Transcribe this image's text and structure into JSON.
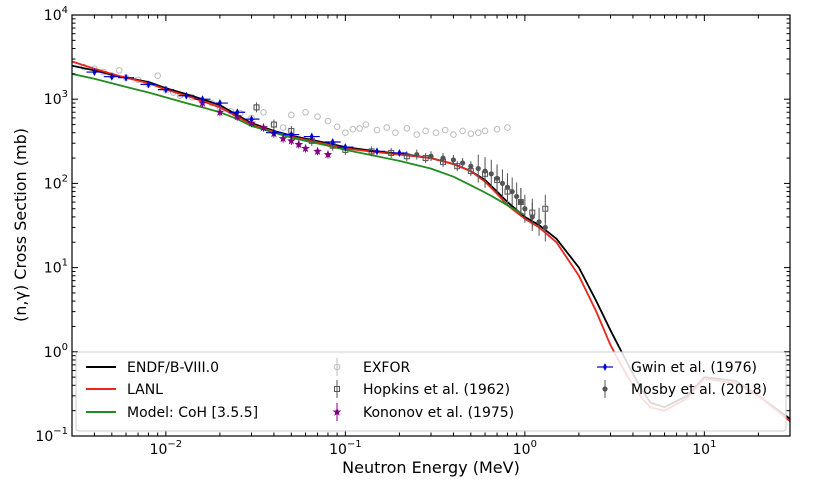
{
  "chart_data": {
    "type": "line",
    "title": "",
    "xlabel": "Neutron Energy (MeV)",
    "ylabel": "(n,γ) Cross Section (mb)",
    "xscale": "log",
    "yscale": "log",
    "xlim": [
      0.003,
      30
    ],
    "ylim": [
      0.1,
      10000
    ],
    "x_ticks": [
      {
        "value": 0.01,
        "base": "10",
        "exp": "−2"
      },
      {
        "value": 0.1,
        "base": "10",
        "exp": "−1"
      },
      {
        "value": 1,
        "base": "10",
        "exp": "0"
      },
      {
        "value": 10,
        "base": "10",
        "exp": "1"
      }
    ],
    "y_ticks": [
      {
        "value": 0.1,
        "base": "10",
        "exp": "−1"
      },
      {
        "value": 1,
        "base": "10",
        "exp": "0"
      },
      {
        "value": 10,
        "base": "10",
        "exp": "1"
      },
      {
        "value": 100,
        "base": "10",
        "exp": "2"
      },
      {
        "value": 1000,
        "base": "10",
        "exp": "3"
      },
      {
        "value": 10000,
        "base": "10",
        "exp": "4"
      }
    ],
    "legend_position": "bottom",
    "series": [
      {
        "name": "ENDF/B-VIII.0",
        "kind": "line",
        "color": "#000000",
        "x": [
          0.003,
          0.004,
          0.005,
          0.006,
          0.008,
          0.01,
          0.013,
          0.016,
          0.02,
          0.025,
          0.03,
          0.04,
          0.05,
          0.06,
          0.08,
          0.1,
          0.15,
          0.2,
          0.3,
          0.4,
          0.5,
          0.6,
          0.7,
          0.8,
          1.0,
          1.2,
          1.5,
          2.0,
          2.5,
          3.0,
          3.5,
          4.0,
          4.5,
          5.0,
          6.0,
          8.0,
          10,
          15,
          20,
          30
        ],
        "y": [
          2500,
          2200,
          1950,
          1800,
          1600,
          1350,
          1150,
          1000,
          850,
          650,
          520,
          420,
          370,
          340,
          300,
          270,
          240,
          225,
          200,
          170,
          140,
          110,
          80,
          60,
          40,
          32,
          22,
          10,
          4.0,
          1.8,
          0.95,
          0.55,
          0.35,
          0.25,
          0.22,
          0.3,
          0.5,
          0.45,
          0.3,
          0.16
        ]
      },
      {
        "name": "LANL",
        "kind": "line",
        "color": "#e8261c",
        "x": [
          0.003,
          0.004,
          0.005,
          0.006,
          0.008,
          0.01,
          0.013,
          0.016,
          0.02,
          0.025,
          0.03,
          0.04,
          0.05,
          0.06,
          0.08,
          0.1,
          0.15,
          0.2,
          0.3,
          0.4,
          0.5,
          0.6,
          0.7,
          0.8,
          1.0,
          1.2,
          1.5,
          2.0,
          2.5,
          3.0,
          3.5,
          4.0,
          4.5,
          5.0,
          6.0,
          8.0,
          10,
          15,
          20,
          30
        ],
        "y": [
          2800,
          2300,
          2000,
          1800,
          1550,
          1300,
          1100,
          950,
          800,
          620,
          500,
          410,
          360,
          330,
          290,
          260,
          235,
          220,
          200,
          170,
          140,
          105,
          75,
          55,
          38,
          30,
          20,
          8.0,
          3.0,
          1.2,
          0.65,
          0.4,
          0.28,
          0.22,
          0.2,
          0.28,
          0.48,
          0.42,
          0.3,
          0.15
        ]
      },
      {
        "name": "Model: CoH [3.5.5]",
        "kind": "line",
        "color": "#228b22",
        "x": [
          0.003,
          0.004,
          0.005,
          0.006,
          0.008,
          0.01,
          0.013,
          0.016,
          0.02,
          0.025,
          0.03,
          0.04,
          0.05,
          0.06,
          0.08,
          0.1,
          0.15,
          0.2,
          0.3,
          0.4,
          0.5,
          0.6,
          0.7,
          0.8,
          1.0
        ],
        "y": [
          2000,
          1750,
          1550,
          1400,
          1200,
          1050,
          900,
          800,
          700,
          580,
          480,
          400,
          350,
          320,
          280,
          250,
          210,
          185,
          150,
          120,
          95,
          78,
          65,
          55,
          42
        ]
      },
      {
        "name": "EXFOR",
        "kind": "marker",
        "marker": "open-circle",
        "color": "#bbbbbb",
        "x": [
          0.0035,
          0.004,
          0.0045,
          0.005,
          0.0055,
          0.006,
          0.007,
          0.008,
          0.009,
          0.01,
          0.011,
          0.012,
          0.014,
          0.016,
          0.018,
          0.02,
          0.023,
          0.026,
          0.03,
          0.032,
          0.035,
          0.04,
          0.045,
          0.05,
          0.06,
          0.07,
          0.08,
          0.09,
          0.1,
          0.11,
          0.12,
          0.13,
          0.15,
          0.17,
          0.19,
          0.22,
          0.25,
          0.28,
          0.32,
          0.36,
          0.4,
          0.45,
          0.5,
          0.55,
          0.6,
          0.7,
          0.8
        ],
        "y": [
          2400,
          2300,
          2100,
          1900,
          2200,
          1800,
          1700,
          1500,
          1900,
          1300,
          1200,
          1100,
          1050,
          950,
          900,
          800,
          720,
          680,
          600,
          800,
          700,
          500,
          460,
          650,
          700,
          620,
          550,
          470,
          400,
          440,
          450,
          500,
          430,
          460,
          400,
          450,
          380,
          420,
          400,
          430,
          380,
          420,
          390,
          400,
          420,
          440,
          460
        ]
      },
      {
        "name": "Hopkins et al. (1962)",
        "kind": "marker",
        "marker": "open-square",
        "color": "#555555",
        "x": [
          0.032,
          0.04,
          0.05,
          0.065,
          0.085,
          0.1,
          0.14,
          0.18,
          0.22,
          0.28,
          0.35,
          0.42,
          0.5,
          0.6,
          0.7,
          0.8,
          0.95,
          1.1,
          1.3
        ],
        "y": [
          800,
          500,
          420,
          320,
          280,
          250,
          240,
          230,
          210,
          200,
          180,
          160,
          140,
          130,
          110,
          80,
          60,
          45,
          50
        ]
      },
      {
        "name": "Kononov et al. (1975)",
        "kind": "marker",
        "marker": "star",
        "color": "#800080",
        "x": [
          0.016,
          0.02,
          0.025,
          0.03,
          0.035,
          0.04,
          0.045,
          0.05,
          0.055,
          0.06,
          0.07,
          0.08
        ],
        "y": [
          900,
          700,
          620,
          520,
          460,
          390,
          340,
          320,
          290,
          260,
          240,
          220
        ]
      },
      {
        "name": "Gwin et al. (1976)",
        "kind": "marker",
        "marker": "cross",
        "color": "#0000cc",
        "x": [
          0.004,
          0.005,
          0.006,
          0.008,
          0.01,
          0.013,
          0.016,
          0.02,
          0.025,
          0.03,
          0.04,
          0.05,
          0.065,
          0.085,
          0.1,
          0.15,
          0.2
        ],
        "y": [
          2100,
          1850,
          1800,
          1500,
          1300,
          1100,
          1000,
          900,
          700,
          580,
          400,
          380,
          360,
          310,
          270,
          240,
          230
        ]
      },
      {
        "name": "Mosby et al. (2018)",
        "kind": "marker",
        "marker": "filled-circle",
        "color": "#555555",
        "x": [
          0.25,
          0.3,
          0.35,
          0.4,
          0.45,
          0.5,
          0.55,
          0.6,
          0.65,
          0.7,
          0.75,
          0.8,
          0.85,
          0.9,
          0.95,
          1.0,
          1.1,
          1.2,
          1.3
        ],
        "y": [
          220,
          210,
          200,
          190,
          175,
          160,
          150,
          140,
          130,
          115,
          100,
          90,
          80,
          70,
          60,
          50,
          40,
          35,
          30
        ]
      }
    ]
  }
}
